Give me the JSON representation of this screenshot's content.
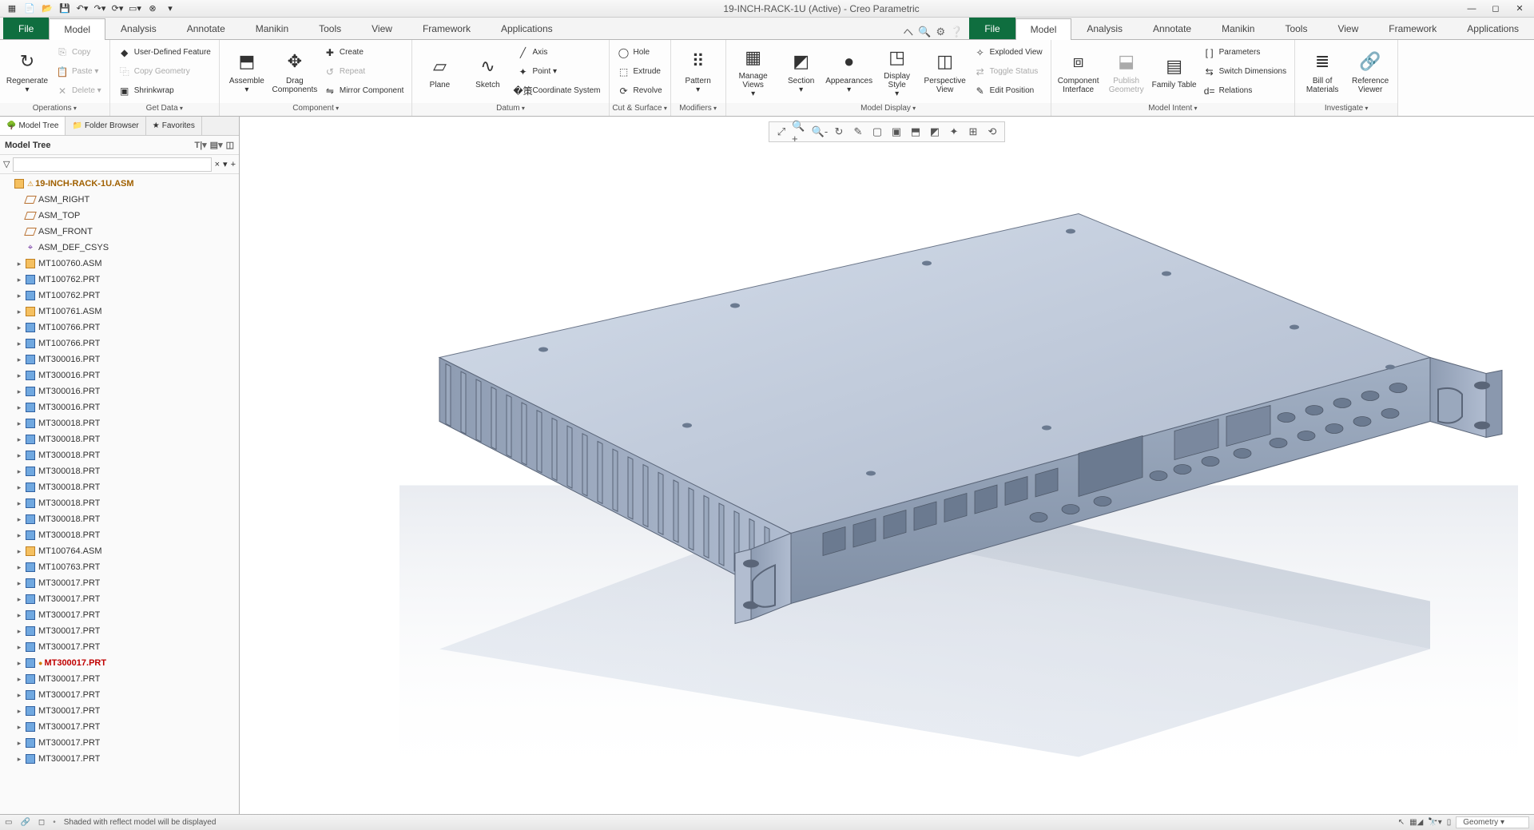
{
  "titlebar": {
    "title": "19-INCH-RACK-1U (Active) - Creo Parametric"
  },
  "qat": [
    "new",
    "open",
    "save",
    "undo",
    "redo",
    "regen",
    "windows",
    "close",
    "more"
  ],
  "ribbon_tabs": [
    "File",
    "Model",
    "Analysis",
    "Annotate",
    "Manikin",
    "Tools",
    "View",
    "Framework",
    "Applications"
  ],
  "ribbon_active": 1,
  "ribbon": {
    "groups": [
      {
        "label": "Operations",
        "big": [
          {
            "label": "Regenerate",
            "icon": "↻",
            "dd": true
          }
        ],
        "cols": [
          [
            {
              "label": "Copy",
              "icon": "⎘",
              "disabled": true
            },
            {
              "label": "Paste ▾",
              "icon": "📋",
              "disabled": true
            },
            {
              "label": "Delete ▾",
              "icon": "✕",
              "disabled": true
            }
          ]
        ]
      },
      {
        "label": "Get Data",
        "cols": [
          [
            {
              "label": "User-Defined Feature",
              "icon": "◆"
            },
            {
              "label": "Copy Geometry",
              "icon": "⿻",
              "disabled": true
            },
            {
              "label": "Shrinkwrap",
              "icon": "▣"
            }
          ]
        ]
      },
      {
        "label": "Component",
        "big": [
          {
            "label": "Assemble",
            "icon": "⬒",
            "dd": true
          },
          {
            "label": "Drag Components",
            "icon": "✥"
          }
        ],
        "cols": [
          [
            {
              "label": "Create",
              "icon": "✚"
            },
            {
              "label": "Repeat",
              "icon": "↺",
              "disabled": true
            },
            {
              "label": "Mirror Component",
              "icon": "⇋"
            }
          ]
        ]
      },
      {
        "label": "Datum",
        "big": [
          {
            "label": "Plane",
            "icon": "▱"
          },
          {
            "label": "Sketch",
            "icon": "∿"
          }
        ],
        "cols": [
          [
            {
              "label": "Axis",
              "icon": "╱"
            },
            {
              "label": "Point ▾",
              "icon": "✦"
            },
            {
              "label": "Coordinate System",
              "icon": "�策"
            }
          ]
        ]
      },
      {
        "label": "Cut & Surface",
        "cols": [
          [
            {
              "label": "Hole",
              "icon": "◯"
            },
            {
              "label": "Extrude",
              "icon": "⬚"
            },
            {
              "label": "Revolve",
              "icon": "⟳"
            }
          ]
        ]
      },
      {
        "label": "Modifiers",
        "big": [
          {
            "label": "Pattern",
            "icon": "⠿",
            "dd": true
          }
        ]
      },
      {
        "label": "Model Display",
        "big": [
          {
            "label": "Manage Views",
            "icon": "▦",
            "dd": true
          },
          {
            "label": "Section",
            "icon": "◩",
            "dd": true
          },
          {
            "label": "Appearances",
            "icon": "●",
            "dd": true
          },
          {
            "label": "Display Style",
            "icon": "◳",
            "dd": true
          },
          {
            "label": "Perspective View",
            "icon": "◫"
          }
        ],
        "cols": [
          [
            {
              "label": "Exploded View",
              "icon": "✧"
            },
            {
              "label": "Toggle Status",
              "icon": "⇄",
              "disabled": true
            },
            {
              "label": "Edit Position",
              "icon": "✎"
            }
          ]
        ]
      },
      {
        "label": "Model Intent",
        "big": [
          {
            "label": "Component Interface",
            "icon": "⧈"
          },
          {
            "label": "Publish Geometry",
            "icon": "⬓",
            "disabled": true
          },
          {
            "label": "Family Table",
            "icon": "▤"
          }
        ],
        "cols": [
          [
            {
              "label": "Parameters",
              "icon": "[ ]"
            },
            {
              "label": "Switch Dimensions",
              "icon": "⇆"
            },
            {
              "label": "Relations",
              "icon": "d="
            }
          ]
        ]
      },
      {
        "label": "Investigate",
        "big": [
          {
            "label": "Bill of Materials",
            "icon": "≣"
          },
          {
            "label": "Reference Viewer",
            "icon": "🔗"
          }
        ]
      }
    ]
  },
  "sidebar": {
    "tabs": [
      {
        "label": "Model Tree",
        "icon": "🌳"
      },
      {
        "label": "Folder Browser",
        "icon": "📁"
      },
      {
        "label": "Favorites",
        "icon": "★"
      }
    ],
    "active_tab": 0,
    "header": "Model Tree",
    "filter_placeholder": "",
    "tree": [
      {
        "depth": 0,
        "exp": "",
        "type": "root",
        "label": "19-INCH-RACK-1U.ASM",
        "icon": "asm",
        "extra": "⚠"
      },
      {
        "depth": 1,
        "exp": "",
        "type": "datum",
        "label": "ASM_RIGHT",
        "icon": "pln"
      },
      {
        "depth": 1,
        "exp": "",
        "type": "datum",
        "label": "ASM_TOP",
        "icon": "pln"
      },
      {
        "depth": 1,
        "exp": "",
        "type": "datum",
        "label": "ASM_FRONT",
        "icon": "pln"
      },
      {
        "depth": 1,
        "exp": "",
        "type": "datum",
        "label": "ASM_DEF_CSYS",
        "icon": "csys"
      },
      {
        "depth": 1,
        "exp": "▸",
        "type": "asm",
        "label": "MT100760.ASM",
        "icon": "asm"
      },
      {
        "depth": 1,
        "exp": "▸",
        "type": "prt",
        "label": "MT100762.PRT",
        "icon": "prt"
      },
      {
        "depth": 1,
        "exp": "▸",
        "type": "prt",
        "label": "MT100762.PRT",
        "icon": "prt"
      },
      {
        "depth": 1,
        "exp": "▸",
        "type": "asm",
        "label": "MT100761.ASM",
        "icon": "asm"
      },
      {
        "depth": 1,
        "exp": "▸",
        "type": "prt",
        "label": "MT100766.PRT",
        "icon": "prt"
      },
      {
        "depth": 1,
        "exp": "▸",
        "type": "prt",
        "label": "MT100766.PRT",
        "icon": "prt"
      },
      {
        "depth": 1,
        "exp": "▸",
        "type": "prt",
        "label": "MT300016<SCR_D965>.PRT",
        "icon": "prt"
      },
      {
        "depth": 1,
        "exp": "▸",
        "type": "prt",
        "label": "MT300016<SCR_D965>.PRT",
        "icon": "prt"
      },
      {
        "depth": 1,
        "exp": "▸",
        "type": "prt",
        "label": "MT300016<SCR_D965>.PRT",
        "icon": "prt"
      },
      {
        "depth": 1,
        "exp": "▸",
        "type": "prt",
        "label": "MT300016<SCR_D965>.PRT",
        "icon": "prt"
      },
      {
        "depth": 1,
        "exp": "▸",
        "type": "prt",
        "label": "MT300018<SCR_D965>.PRT",
        "icon": "prt"
      },
      {
        "depth": 1,
        "exp": "▸",
        "type": "prt",
        "label": "MT300018<SCR_D965>.PRT",
        "icon": "prt"
      },
      {
        "depth": 1,
        "exp": "▸",
        "type": "prt",
        "label": "MT300018<SCR_D965>.PRT",
        "icon": "prt"
      },
      {
        "depth": 1,
        "exp": "▸",
        "type": "prt",
        "label": "MT300018<SCR_D965>.PRT",
        "icon": "prt"
      },
      {
        "depth": 1,
        "exp": "▸",
        "type": "prt",
        "label": "MT300018<SCR_D965>.PRT",
        "icon": "prt"
      },
      {
        "depth": 1,
        "exp": "▸",
        "type": "prt",
        "label": "MT300018<SCR_D965>.PRT",
        "icon": "prt"
      },
      {
        "depth": 1,
        "exp": "▸",
        "type": "prt",
        "label": "MT300018<SCR_D965>.PRT",
        "icon": "prt"
      },
      {
        "depth": 1,
        "exp": "▸",
        "type": "prt",
        "label": "MT300018<SCR_D965>.PRT",
        "icon": "prt"
      },
      {
        "depth": 1,
        "exp": "▸",
        "type": "asm",
        "label": "MT100764.ASM",
        "icon": "asm"
      },
      {
        "depth": 1,
        "exp": "▸",
        "type": "prt",
        "label": "MT100763.PRT",
        "icon": "prt"
      },
      {
        "depth": 1,
        "exp": "▸",
        "type": "prt",
        "label": "MT300017<SCR_D965>.PRT",
        "icon": "prt"
      },
      {
        "depth": 1,
        "exp": "▸",
        "type": "prt",
        "label": "MT300017<SCR_D965>.PRT",
        "icon": "prt"
      },
      {
        "depth": 1,
        "exp": "▸",
        "type": "prt",
        "label": "MT300017<SCR_D965>.PRT",
        "icon": "prt"
      },
      {
        "depth": 1,
        "exp": "▸",
        "type": "prt",
        "label": "MT300017<SCR_D965>.PRT",
        "icon": "prt"
      },
      {
        "depth": 1,
        "exp": "▸",
        "type": "prt",
        "label": "MT300017<SCR_D965>.PRT",
        "icon": "prt"
      },
      {
        "depth": 1,
        "exp": "▸",
        "type": "err",
        "label": "MT300017<SCR_D965>.PRT",
        "icon": "prt",
        "extra": "●"
      },
      {
        "depth": 1,
        "exp": "▸",
        "type": "prt",
        "label": "MT300017<SCR_D965>.PRT",
        "icon": "prt"
      },
      {
        "depth": 1,
        "exp": "▸",
        "type": "prt",
        "label": "MT300017<SCR_D965>.PRT",
        "icon": "prt"
      },
      {
        "depth": 1,
        "exp": "▸",
        "type": "prt",
        "label": "MT300017<SCR_D965>.PRT",
        "icon": "prt"
      },
      {
        "depth": 1,
        "exp": "▸",
        "type": "prt",
        "label": "MT300017<SCR_D965>.PRT",
        "icon": "prt"
      },
      {
        "depth": 1,
        "exp": "▸",
        "type": "prt",
        "label": "MT300017<SCR_D965>.PRT",
        "icon": "prt"
      },
      {
        "depth": 1,
        "exp": "▸",
        "type": "prt",
        "label": "MT300017<SCR_D965>.PRT",
        "icon": "prt"
      }
    ]
  },
  "view_toolbar": [
    "⤢",
    "🔍+",
    "🔍-",
    "↻",
    "✎",
    "▢",
    "▣",
    "⬒",
    "◩",
    "✦",
    "⊞",
    "⟲"
  ],
  "statusbar": {
    "message": "Shaded with reflect model will be displayed",
    "geom_label": "Geometry"
  },
  "model3d": {
    "colors": {
      "top_light": "#c8d2e0",
      "top_dark": "#b0bdd0",
      "front_light": "#9aa8bd",
      "front_dark": "#7e8da3",
      "side_light": "#aab6c8",
      "side_dark": "#8f9cb0",
      "reflection_opacity": 0.25,
      "background": "#ffffff",
      "hole": "#6b7a90",
      "edge": "#5a6578"
    }
  }
}
